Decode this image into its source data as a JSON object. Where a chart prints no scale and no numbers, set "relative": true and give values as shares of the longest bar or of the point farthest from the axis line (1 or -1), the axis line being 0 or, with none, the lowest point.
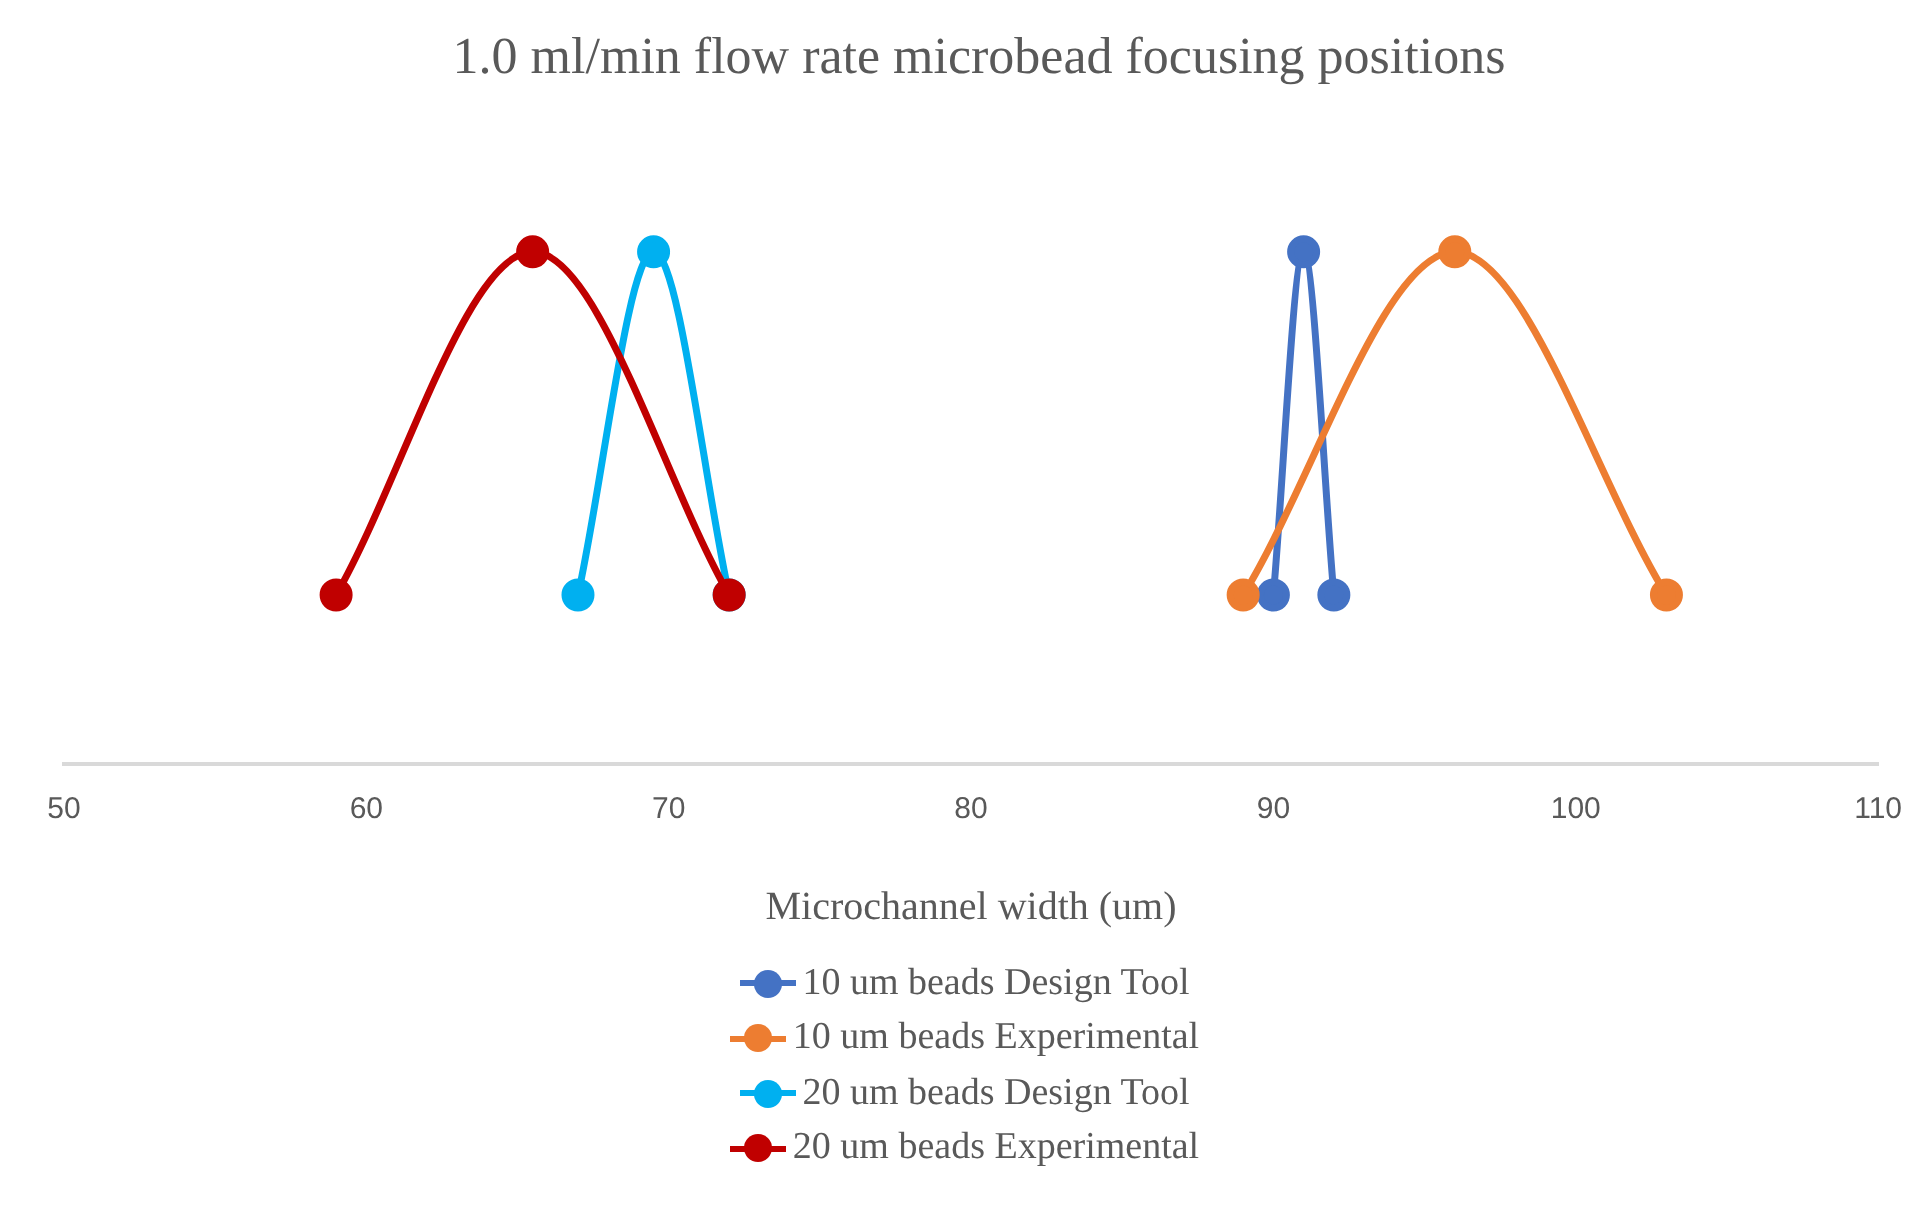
{
  "chart_data": {
    "type": "line",
    "title": "1.0 ml/min flow rate microbead focusing positions",
    "xlabel": "Microchannel width (um)",
    "xlim": [
      50,
      110
    ],
    "xticks": [
      50,
      60,
      70,
      80,
      90,
      100,
      110
    ],
    "relative": true,
    "grid": false,
    "legend": "bottom",
    "marker": "circle",
    "line_style": "solid",
    "series": [
      {
        "name": "10 um beads Design Tool",
        "color": "#4472c4",
        "x": [
          90,
          91,
          92
        ],
        "values": [
          0.33,
          1,
          0.33
        ]
      },
      {
        "name": "10 um beads Experimental",
        "color": "#ed7d31",
        "x": [
          89,
          96,
          103
        ],
        "values": [
          0.33,
          1,
          0.33
        ]
      },
      {
        "name": "20 um beads Design Tool",
        "color": "#00b0f0",
        "x": [
          67,
          69.5,
          72
        ],
        "values": [
          0.33,
          1,
          0.33
        ]
      },
      {
        "name": "20 um beads Experimental",
        "color": "#c00000",
        "x": [
          59,
          65.5,
          72
        ],
        "values": [
          0.33,
          1,
          0.33
        ]
      }
    ]
  }
}
